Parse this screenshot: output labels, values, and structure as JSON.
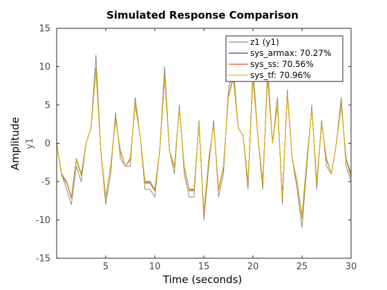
{
  "chart_data": {
    "type": "line",
    "title": "Simulated Response Comparison",
    "xlabel": "Time (seconds)",
    "ylabel": "Amplitude",
    "channel_label": "y1",
    "xlim": [
      0,
      30
    ],
    "ylim": [
      -15,
      15
    ],
    "xticks": [
      5,
      10,
      15,
      20,
      25,
      30
    ],
    "yticks": [
      -15,
      -10,
      -5,
      0,
      5,
      10,
      15
    ],
    "grid": false,
    "legend_position": "top-right",
    "x": [
      0.0,
      0.5,
      1.0,
      1.5,
      2.0,
      2.5,
      3.0,
      3.5,
      4.0,
      4.5,
      5.0,
      5.5,
      6.0,
      6.5,
      7.0,
      7.5,
      8.0,
      8.5,
      9.0,
      9.5,
      10.0,
      10.5,
      11.0,
      11.5,
      12.0,
      12.5,
      13.0,
      13.5,
      14.0,
      14.5,
      15.0,
      15.5,
      16.0,
      16.5,
      17.0,
      17.5,
      18.0,
      18.5,
      19.0,
      19.5,
      20.0,
      20.5,
      21.0,
      21.5,
      22.0,
      22.5,
      23.0,
      23.5,
      24.0,
      24.5,
      25.0,
      25.5,
      26.0,
      26.5,
      27.0,
      27.5,
      28.0,
      28.5,
      29.0,
      29.5,
      30.0
    ],
    "series": [
      {
        "name": "z1 (y1)",
        "color": "#8c8c8c",
        "values": [
          0,
          -4,
          -6,
          -8,
          -3,
          -5,
          0,
          2,
          11.5,
          -1,
          -8,
          -4,
          4,
          -2,
          -3,
          -3,
          6,
          1,
          -6,
          -6,
          -7,
          -1,
          10,
          -1,
          -4,
          5,
          -4,
          -7,
          -7,
          3,
          -10,
          -3,
          3,
          -7,
          -4,
          7,
          10,
          2,
          1,
          -6,
          10,
          1,
          -6,
          10,
          0,
          6,
          -8,
          7,
          -2,
          -6,
          -11,
          -3,
          5,
          -6,
          3,
          -3,
          -4,
          0,
          6,
          -3,
          -5
        ]
      },
      {
        "name": "sys_armax: 70.27%",
        "color": "#1f4ea0",
        "values": [
          0,
          -4,
          -5,
          -7,
          -2,
          -4,
          0,
          2,
          9.5,
          -1,
          -7,
          -3,
          3,
          -1,
          -3,
          -2,
          5,
          1,
          -5,
          -5,
          -6,
          -1,
          8.5,
          -1,
          -3,
          4.5,
          -3,
          -6,
          -6,
          2.5,
          -9,
          -2,
          2.5,
          -6,
          -3,
          6,
          8.5,
          2,
          1,
          -5,
          8.5,
          1,
          -5,
          8.5,
          0,
          5,
          -7,
          6.5,
          -2,
          -5,
          -9.5,
          -2,
          4.5,
          -5,
          2.5,
          -2,
          -4,
          0,
          5,
          -2,
          -4
        ]
      },
      {
        "name": "sys_ss: 70.56%",
        "color": "#d9531e",
        "values": [
          0,
          -4.2,
          -5.2,
          -7.2,
          -2.2,
          -4.2,
          0,
          2,
          9.8,
          -1,
          -7.2,
          -3,
          3.2,
          -1.2,
          -3,
          -2.2,
          5.2,
          1,
          -5.2,
          -5.2,
          -6.2,
          -1,
          8.8,
          -1,
          -3.2,
          4.6,
          -3.2,
          -6.2,
          -6.2,
          2.6,
          -9.4,
          -2.2,
          2.6,
          -6.2,
          -3.2,
          6.2,
          8.8,
          2,
          1,
          -5.2,
          8.8,
          1,
          -5.2,
          8.8,
          0,
          5.2,
          -7.2,
          6.6,
          -2,
          -5.2,
          -9.8,
          -2.2,
          4.6,
          -5.2,
          2.6,
          -2.2,
          -4,
          0,
          5.2,
          -2.2,
          -4.4
        ]
      },
      {
        "name": "sys_tf: 70.96%",
        "color": "#e6b800",
        "values": [
          0,
          -4.1,
          -5.1,
          -7.1,
          -2.1,
          -4.1,
          0,
          2,
          9.6,
          -1,
          -7.1,
          -3,
          3.1,
          -1.1,
          -3,
          -2.1,
          5.1,
          1,
          -5.1,
          -5.1,
          -6.1,
          -1,
          8.6,
          -1,
          -3.1,
          4.5,
          -3.1,
          -6.1,
          -6.1,
          2.5,
          -9.2,
          -2.1,
          2.5,
          -6.1,
          -3.1,
          6.1,
          8.6,
          2,
          1,
          -5.1,
          8.6,
          1,
          -5.1,
          8.6,
          0,
          5.1,
          -7.1,
          6.5,
          -2,
          -5.1,
          -9.6,
          -2.1,
          4.5,
          -5.1,
          2.5,
          -2.1,
          -4,
          0,
          5.1,
          -2.1,
          -4.2
        ]
      }
    ]
  }
}
